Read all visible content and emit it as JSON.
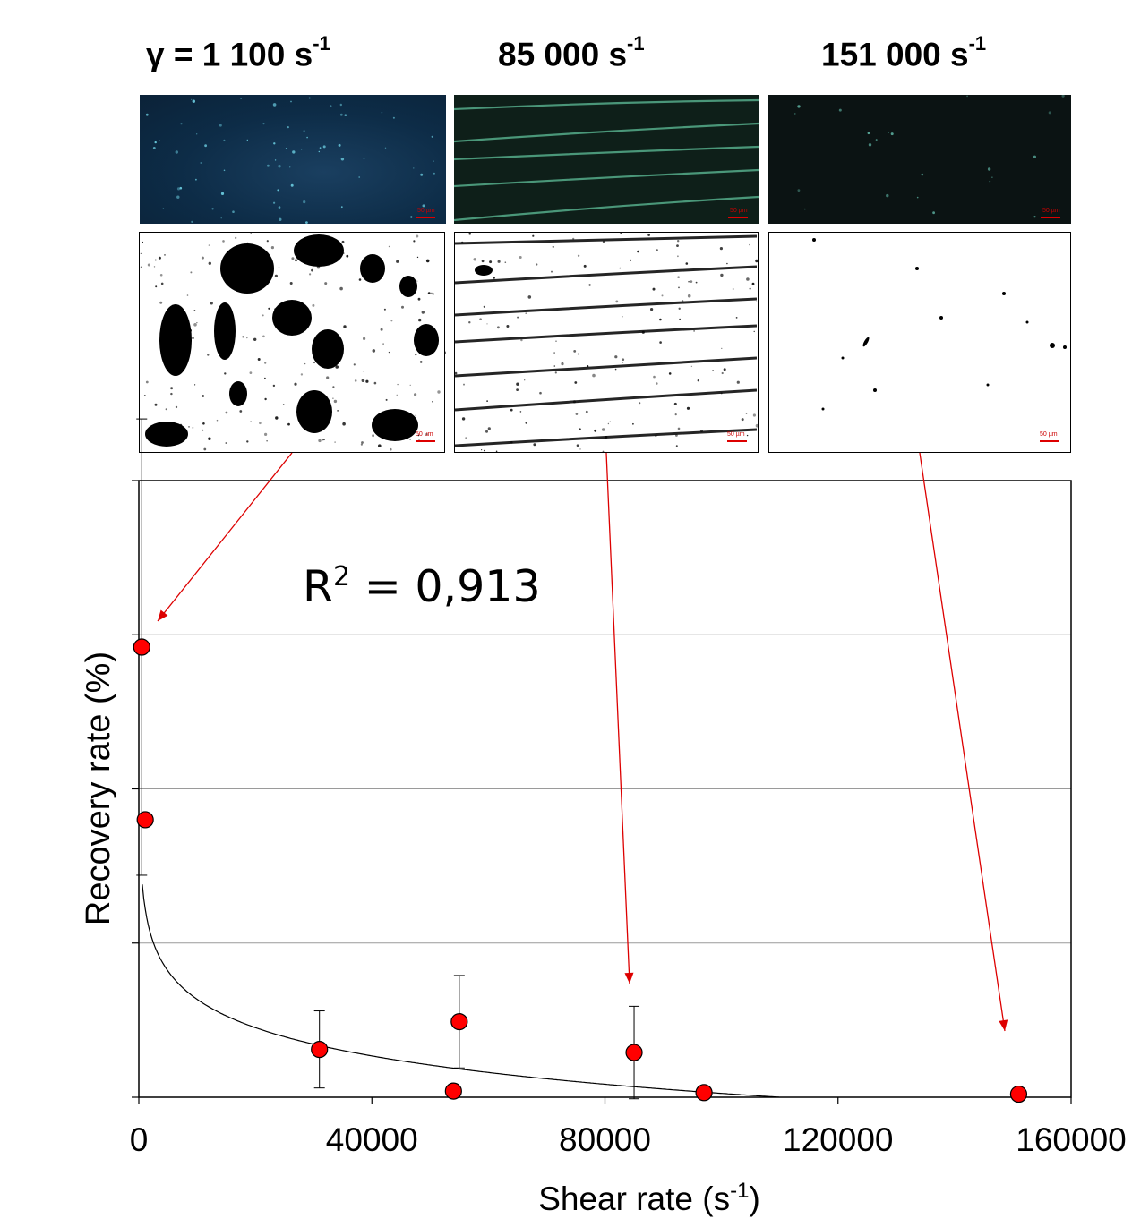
{
  "panels": {
    "headers": [
      {
        "prefix": "γ = 1 100 s",
        "sup": "-1"
      },
      {
        "prefix": "85 000 s",
        "sup": "-1"
      },
      {
        "prefix": "151 000 s",
        "sup": "-1"
      }
    ],
    "scalebar_label": "50 µm"
  },
  "colors": {
    "marker_fill": "#ff0000",
    "arrow": "#dd0000",
    "grid": "#9a9a9a",
    "micro_1": "#0d2c47",
    "micro_2": "#0d1d18",
    "micro_3": "#0a1212"
  },
  "chart_data": {
    "type": "scatter",
    "title": "",
    "xlabel": "Shear rate (s",
    "xlabel_sup": "-1",
    "xlabel_suffix": ")",
    "ylabel": "Recovery rate (%)",
    "xlim": [
      0,
      160000
    ],
    "ylim": [
      0,
      4
    ],
    "x_ticks": [
      0,
      40000,
      80000,
      120000,
      160000
    ],
    "x_tick_labels": [
      "0",
      "40000",
      "80000",
      "120000",
      "160000"
    ],
    "y_ticks": [
      0,
      1,
      2,
      3,
      4
    ],
    "y_tick_labels": [],
    "grid": {
      "horizontal": [
        1,
        2,
        3
      ]
    },
    "annotation": {
      "base": "R",
      "sup": "2",
      "rest": " = 0,913"
    },
    "points": [
      {
        "x": 500,
        "y": 2.92,
        "err": 1.48
      },
      {
        "x": 1100,
        "y": 1.8,
        "err": 0
      },
      {
        "x": 31000,
        "y": 0.31,
        "err": 0.25
      },
      {
        "x": 54000,
        "y": 0.04,
        "err": 0
      },
      {
        "x": 55000,
        "y": 0.49,
        "err": 0.3
      },
      {
        "x": 85000,
        "y": 0.29,
        "err": 0.3
      },
      {
        "x": 97000,
        "y": 0.03,
        "err": 0
      },
      {
        "x": 151000,
        "y": 0.02,
        "err": 0
      }
    ],
    "fit": {
      "type": "log",
      "a": 3.075,
      "b": 0.2649
    }
  }
}
